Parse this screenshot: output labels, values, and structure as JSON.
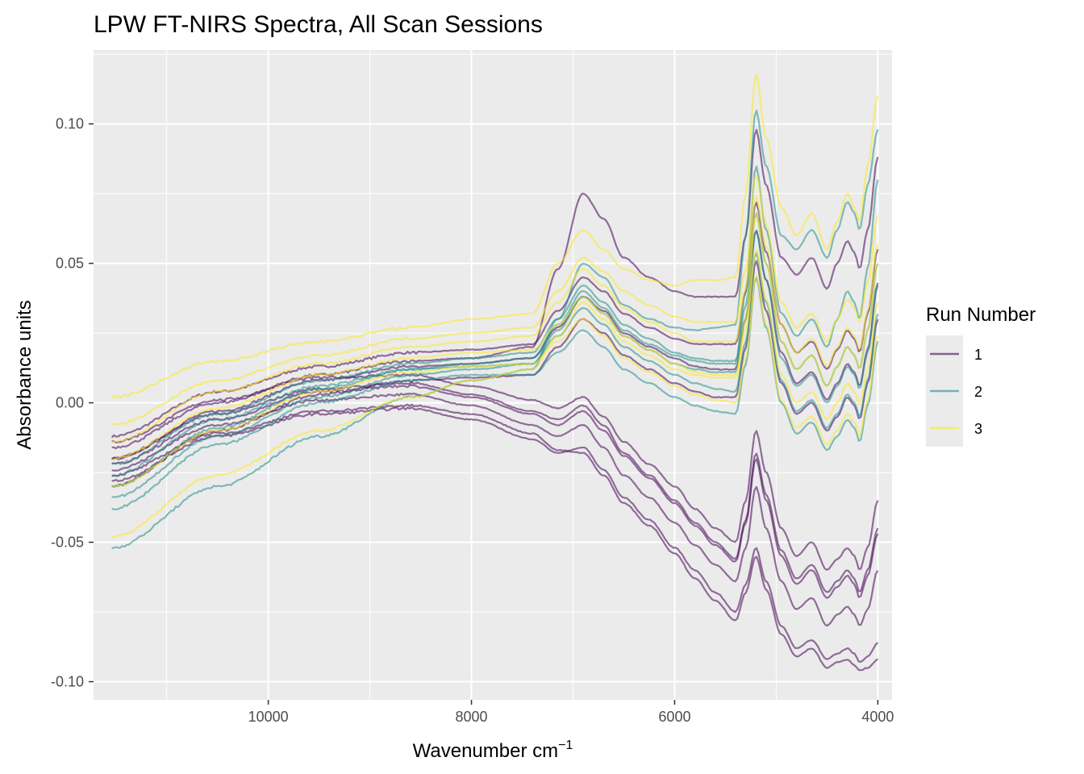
{
  "chart_data": {
    "type": "line",
    "title": "LPW FT-NIRS Spectra, All Scan Sessions",
    "xlabel": "Wavenumber cm",
    "xlabel_sup": "−1",
    "ylabel": "Absorbance units",
    "x_reversed": true,
    "xlim": [
      3860,
      11720
    ],
    "ylim": [
      -0.1065,
      0.1265
    ],
    "x_ticks": [
      10000,
      8000,
      6000,
      4000
    ],
    "x_tick_labels": [
      "10000",
      "8000",
      "6000",
      "4000"
    ],
    "y_ticks": [
      -0.1,
      -0.05,
      0.0,
      0.05,
      0.1
    ],
    "y_tick_labels": [
      "-0.10",
      "-0.05",
      "0.00",
      "0.05",
      "0.10"
    ],
    "grid": true,
    "legend": {
      "title": "Run Number",
      "placement": "right",
      "entries": [
        {
          "label": "1",
          "color": "#440154"
        },
        {
          "label": "2",
          "color": "#21908C"
        },
        {
          "label": "3",
          "color": "#FDE725"
        }
      ]
    },
    "panel_background": "#EBEBEB",
    "x_range_data": [
      11540,
      4000
    ],
    "spectrum_key_x": [
      11540,
      10500,
      9500,
      8600,
      8000,
      7400,
      7150,
      6900,
      6700,
      6500,
      6250,
      6000,
      5800,
      5600,
      5400,
      5300,
      5200,
      5100,
      4950,
      4800,
      4650,
      4500,
      4400,
      4300,
      4230,
      4180,
      4100,
      4000
    ],
    "series": [
      {
        "run": 1,
        "values": [
          -0.012,
          0.004,
          0.013,
          0.018,
          0.019,
          0.021,
          0.033,
          0.045,
          0.04,
          0.032,
          0.027,
          0.023,
          0.021,
          0.021,
          0.021,
          0.04,
          0.072,
          0.054,
          0.028,
          0.018,
          0.022,
          0.012,
          0.019,
          0.026,
          0.023,
          0.018,
          0.032,
          0.055
        ]
      },
      {
        "run": 1,
        "values": [
          -0.02,
          -0.003,
          0.008,
          0.013,
          0.014,
          0.016,
          0.027,
          0.038,
          0.033,
          0.025,
          0.02,
          0.016,
          0.013,
          0.012,
          0.012,
          0.03,
          0.062,
          0.044,
          0.018,
          0.007,
          0.011,
          0.001,
          0.007,
          0.014,
          0.011,
          0.006,
          0.019,
          0.043
        ]
      },
      {
        "run": 1,
        "values": [
          -0.03,
          -0.01,
          0.003,
          0.008,
          0.009,
          0.01,
          0.02,
          0.03,
          0.025,
          0.017,
          0.012,
          0.007,
          0.004,
          0.002,
          0.002,
          0.02,
          0.051,
          0.033,
          0.007,
          -0.004,
          0.0,
          -0.01,
          -0.005,
          0.002,
          -0.001,
          -0.006,
          0.007,
          0.03
        ]
      },
      {
        "run": 1,
        "values": [
          -0.016,
          0.0,
          0.01,
          0.015,
          0.016,
          0.02,
          0.048,
          0.075,
          0.066,
          0.052,
          0.045,
          0.04,
          0.038,
          0.038,
          0.038,
          0.06,
          0.098,
          0.078,
          0.052,
          0.046,
          0.052,
          0.041,
          0.05,
          0.058,
          0.054,
          0.048,
          0.062,
          0.088
        ]
      },
      {
        "run": 1,
        "values": [
          -0.014,
          0.001,
          0.009,
          0.01,
          0.006,
          0.001,
          -0.002,
          0.002,
          -0.005,
          -0.014,
          -0.022,
          -0.03,
          -0.038,
          -0.045,
          -0.05,
          -0.035,
          -0.01,
          -0.025,
          -0.045,
          -0.055,
          -0.05,
          -0.06,
          -0.056,
          -0.052,
          -0.055,
          -0.06,
          -0.052,
          -0.035
        ]
      },
      {
        "run": 1,
        "values": [
          -0.02,
          -0.004,
          0.005,
          0.007,
          0.003,
          -0.003,
          -0.006,
          -0.001,
          -0.008,
          -0.018,
          -0.026,
          -0.035,
          -0.043,
          -0.05,
          -0.056,
          -0.042,
          -0.018,
          -0.033,
          -0.053,
          -0.063,
          -0.058,
          -0.068,
          -0.064,
          -0.06,
          -0.063,
          -0.068,
          -0.06,
          -0.045
        ]
      },
      {
        "run": 1,
        "values": [
          -0.024,
          -0.008,
          0.001,
          0.003,
          -0.001,
          -0.008,
          -0.012,
          -0.008,
          -0.016,
          -0.026,
          -0.034,
          -0.043,
          -0.051,
          -0.058,
          -0.064,
          -0.052,
          -0.03,
          -0.045,
          -0.064,
          -0.074,
          -0.07,
          -0.08,
          -0.076,
          -0.073,
          -0.076,
          -0.08,
          -0.074,
          -0.06
        ]
      },
      {
        "run": 1,
        "values": [
          -0.028,
          -0.012,
          -0.004,
          -0.002,
          -0.006,
          -0.013,
          -0.018,
          -0.016,
          -0.024,
          -0.034,
          -0.042,
          -0.052,
          -0.06,
          -0.068,
          -0.075,
          -0.065,
          -0.052,
          -0.064,
          -0.08,
          -0.088,
          -0.085,
          -0.092,
          -0.09,
          -0.088,
          -0.09,
          -0.093,
          -0.091,
          -0.086
        ]
      },
      {
        "run": 1,
        "values": [
          -0.026,
          -0.011,
          -0.003,
          -0.001,
          -0.004,
          -0.011,
          -0.017,
          -0.018,
          -0.026,
          -0.036,
          -0.044,
          -0.054,
          -0.063,
          -0.071,
          -0.078,
          -0.068,
          -0.055,
          -0.067,
          -0.083,
          -0.091,
          -0.088,
          -0.095,
          -0.093,
          -0.092,
          -0.094,
          -0.096,
          -0.095,
          -0.092
        ]
      },
      {
        "run": 1,
        "values": [
          -0.022,
          -0.006,
          0.004,
          0.006,
          0.002,
          -0.004,
          -0.008,
          -0.003,
          -0.01,
          -0.019,
          -0.027,
          -0.036,
          -0.044,
          -0.051,
          -0.057,
          -0.043,
          -0.02,
          -0.035,
          -0.055,
          -0.065,
          -0.06,
          -0.07,
          -0.066,
          -0.062,
          -0.065,
          -0.07,
          -0.062,
          -0.047
        ]
      },
      {
        "run": 2,
        "values": [
          -0.022,
          -0.004,
          0.008,
          0.014,
          0.016,
          0.018,
          0.03,
          0.042,
          0.036,
          0.028,
          0.023,
          0.018,
          0.016,
          0.015,
          0.015,
          0.035,
          0.068,
          0.05,
          0.022,
          0.012,
          0.017,
          0.006,
          0.013,
          0.02,
          0.017,
          0.012,
          0.026,
          0.05
        ]
      },
      {
        "run": 2,
        "values": [
          -0.03,
          -0.009,
          0.005,
          0.012,
          0.014,
          0.016,
          0.028,
          0.04,
          0.034,
          0.026,
          0.021,
          0.017,
          0.015,
          0.014,
          0.014,
          0.04,
          0.085,
          0.062,
          0.032,
          0.024,
          0.03,
          0.02,
          0.03,
          0.04,
          0.036,
          0.03,
          0.048,
          0.08
        ]
      },
      {
        "run": 2,
        "values": [
          -0.038,
          -0.015,
          0.0,
          0.008,
          0.01,
          0.01,
          0.018,
          0.026,
          0.02,
          0.012,
          0.007,
          0.002,
          -0.001,
          -0.003,
          -0.004,
          0.014,
          0.045,
          0.027,
          0.0,
          -0.011,
          -0.007,
          -0.017,
          -0.012,
          -0.006,
          -0.009,
          -0.014,
          -0.001,
          0.022
        ]
      },
      {
        "run": 2,
        "values": [
          -0.052,
          -0.03,
          -0.012,
          0.002,
          0.008,
          0.012,
          0.03,
          0.05,
          0.045,
          0.035,
          0.03,
          0.027,
          0.026,
          0.027,
          0.028,
          0.06,
          0.105,
          0.085,
          0.06,
          0.055,
          0.062,
          0.052,
          0.062,
          0.072,
          0.068,
          0.062,
          0.078,
          0.098
        ]
      },
      {
        "run": 2,
        "values": [
          -0.026,
          -0.006,
          0.006,
          0.012,
          0.013,
          0.014,
          0.024,
          0.034,
          0.028,
          0.02,
          0.015,
          0.01,
          0.007,
          0.005,
          0.004,
          0.022,
          0.054,
          0.036,
          0.008,
          -0.003,
          0.001,
          -0.009,
          -0.004,
          0.003,
          0.0,
          -0.005,
          0.008,
          0.032
        ]
      },
      {
        "run": 2,
        "values": [
          -0.034,
          -0.012,
          0.002,
          0.01,
          0.012,
          0.014,
          0.026,
          0.038,
          0.032,
          0.024,
          0.019,
          0.014,
          0.012,
          0.011,
          0.011,
          0.03,
          0.062,
          0.044,
          0.016,
          0.006,
          0.01,
          0.0,
          0.006,
          0.013,
          0.01,
          0.005,
          0.018,
          0.042
        ]
      },
      {
        "run": 3,
        "values": [
          -0.008,
          0.008,
          0.017,
          0.023,
          0.025,
          0.027,
          0.04,
          0.052,
          0.047,
          0.04,
          0.035,
          0.031,
          0.029,
          0.029,
          0.029,
          0.048,
          0.082,
          0.064,
          0.036,
          0.027,
          0.032,
          0.022,
          0.03,
          0.037,
          0.034,
          0.029,
          0.043,
          0.067
        ]
      },
      {
        "run": 3,
        "values": [
          0.002,
          0.015,
          0.022,
          0.027,
          0.03,
          0.032,
          0.05,
          0.062,
          0.055,
          0.048,
          0.044,
          0.042,
          0.044,
          0.044,
          0.045,
          0.075,
          0.118,
          0.095,
          0.07,
          0.06,
          0.068,
          0.055,
          0.065,
          0.075,
          0.07,
          0.065,
          0.085,
          0.11
        ]
      },
      {
        "run": 3,
        "values": [
          -0.014,
          0.004,
          0.014,
          0.02,
          0.022,
          0.024,
          0.036,
          0.048,
          0.042,
          0.034,
          0.029,
          0.025,
          0.022,
          0.022,
          0.022,
          0.041,
          0.074,
          0.056,
          0.028,
          0.018,
          0.023,
          0.013,
          0.02,
          0.027,
          0.024,
          0.019,
          0.033,
          0.057
        ]
      },
      {
        "run": 3,
        "values": [
          -0.048,
          -0.026,
          -0.01,
          0.002,
          0.008,
          0.012,
          0.024,
          0.036,
          0.03,
          0.022,
          0.017,
          0.012,
          0.01,
          0.009,
          0.009,
          0.03,
          0.068,
          0.05,
          0.022,
          0.012,
          0.017,
          0.006,
          0.013,
          0.02,
          0.017,
          0.012,
          0.026,
          0.05
        ]
      },
      {
        "run": 3,
        "values": [
          -0.02,
          -0.002,
          0.01,
          0.016,
          0.018,
          0.019,
          0.028,
          0.038,
          0.032,
          0.024,
          0.019,
          0.014,
          0.011,
          0.01,
          0.01,
          0.026,
          0.055,
          0.037,
          0.01,
          0.0,
          0.004,
          -0.006,
          0.0,
          0.007,
          0.004,
          -0.001,
          0.012,
          0.036
        ]
      },
      {
        "run": 3,
        "values": [
          -0.03,
          -0.01,
          0.004,
          0.011,
          0.013,
          0.014,
          0.022,
          0.03,
          0.024,
          0.016,
          0.011,
          0.006,
          0.003,
          0.001,
          0.0,
          0.016,
          0.046,
          0.028,
          0.001,
          -0.009,
          -0.005,
          -0.015,
          -0.01,
          -0.004,
          -0.007,
          -0.012,
          0.001,
          0.024
        ]
      }
    ]
  }
}
